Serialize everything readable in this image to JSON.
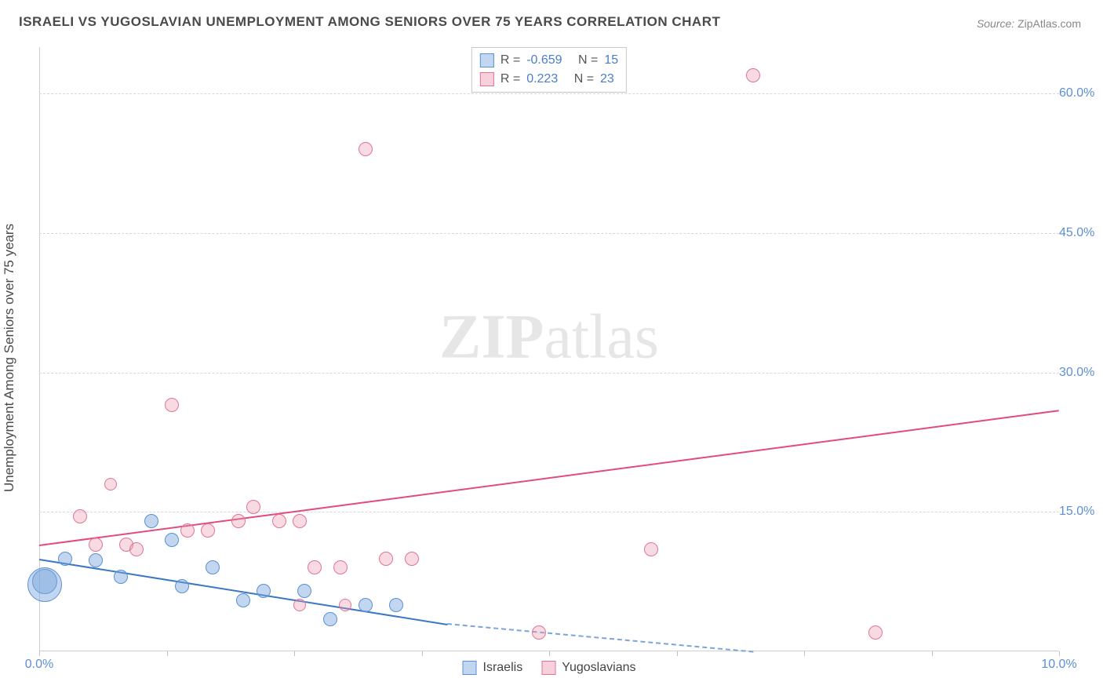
{
  "title": "ISRAELI VS YUGOSLAVIAN UNEMPLOYMENT AMONG SENIORS OVER 75 YEARS CORRELATION CHART",
  "source_label": "Source:",
  "source_value": "ZipAtlas.com",
  "y_axis_label": "Unemployment Among Seniors over 75 years",
  "watermark_bold": "ZIP",
  "watermark_rest": "atlas",
  "chart": {
    "type": "scatter-with-trend",
    "background_color": "#ffffff",
    "grid_color": "#d8d8d8",
    "axis_color": "#d0d0d0",
    "tick_label_color": "#5b8fd6",
    "xlim": [
      0,
      10
    ],
    "ylim": [
      0,
      65
    ],
    "x_ticks": [
      0,
      1.25,
      2.5,
      3.75,
      5,
      6.25,
      7.5,
      8.75,
      10
    ],
    "x_tick_labels": {
      "0": "0.0%",
      "10": "10.0%"
    },
    "y_gridlines": [
      15,
      30,
      45,
      60
    ],
    "y_tick_labels": {
      "15": "15.0%",
      "30": "30.0%",
      "45": "45.0%",
      "60": "60.0%"
    },
    "label_fontsize": 16,
    "title_fontsize": 17,
    "axis_fontsize": 17
  },
  "series": {
    "israelis": {
      "label": "Israelis",
      "color": "#5b8fd6",
      "fill": "rgba(120,165,220,0.45)",
      "R": "-0.659",
      "N": "15",
      "points": [
        {
          "x": 0.05,
          "y": 7.5,
          "r": 16
        },
        {
          "x": 0.05,
          "y": 7.2,
          "r": 22
        },
        {
          "x": 0.25,
          "y": 10.0,
          "r": 9
        },
        {
          "x": 0.55,
          "y": 9.8,
          "r": 9
        },
        {
          "x": 0.8,
          "y": 8.0,
          "r": 9
        },
        {
          "x": 1.1,
          "y": 14.0,
          "r": 9
        },
        {
          "x": 1.3,
          "y": 12.0,
          "r": 9
        },
        {
          "x": 1.4,
          "y": 7.0,
          "r": 9
        },
        {
          "x": 1.7,
          "y": 9.0,
          "r": 9
        },
        {
          "x": 2.0,
          "y": 5.5,
          "r": 9
        },
        {
          "x": 2.2,
          "y": 6.5,
          "r": 9
        },
        {
          "x": 2.6,
          "y": 6.5,
          "r": 9
        },
        {
          "x": 2.85,
          "y": 3.5,
          "r": 9
        },
        {
          "x": 3.2,
          "y": 5.0,
          "r": 9
        },
        {
          "x": 3.5,
          "y": 5.0,
          "r": 9
        }
      ],
      "trend": {
        "x1": 0,
        "y1": 10.0,
        "x2": 4.0,
        "y2": 3.0,
        "extend_to_x": 10,
        "extend_to_y": -3
      }
    },
    "yugoslavians": {
      "label": "Yugoslavians",
      "color": "#e27396",
      "fill": "rgba(235,150,175,0.35)",
      "R": "0.223",
      "N": "23",
      "points": [
        {
          "x": 0.4,
          "y": 14.5,
          "r": 9
        },
        {
          "x": 0.55,
          "y": 11.5,
          "r": 9
        },
        {
          "x": 0.7,
          "y": 18.0,
          "r": 8
        },
        {
          "x": 0.85,
          "y": 11.5,
          "r": 9
        },
        {
          "x": 0.95,
          "y": 11.0,
          "r": 9
        },
        {
          "x": 1.3,
          "y": 26.5,
          "r": 9
        },
        {
          "x": 1.45,
          "y": 13.0,
          "r": 9
        },
        {
          "x": 1.65,
          "y": 13.0,
          "r": 9
        },
        {
          "x": 1.95,
          "y": 14.0,
          "r": 9
        },
        {
          "x": 2.1,
          "y": 15.5,
          "r": 9
        },
        {
          "x": 2.35,
          "y": 14.0,
          "r": 9
        },
        {
          "x": 2.55,
          "y": 14.0,
          "r": 9
        },
        {
          "x": 2.55,
          "y": 5.0,
          "r": 8
        },
        {
          "x": 2.7,
          "y": 9.0,
          "r": 9
        },
        {
          "x": 2.95,
          "y": 9.0,
          "r": 9
        },
        {
          "x": 3.0,
          "y": 5.0,
          "r": 8
        },
        {
          "x": 3.2,
          "y": 54.0,
          "r": 9
        },
        {
          "x": 3.4,
          "y": 10.0,
          "r": 9
        },
        {
          "x": 3.65,
          "y": 10.0,
          "r": 9
        },
        {
          "x": 4.9,
          "y": 2.0,
          "r": 9
        },
        {
          "x": 6.0,
          "y": 11.0,
          "r": 9
        },
        {
          "x": 7.0,
          "y": 62.0,
          "r": 9
        },
        {
          "x": 8.2,
          "y": 2.0,
          "r": 9
        }
      ],
      "trend": {
        "x1": 0,
        "y1": 11.5,
        "x2": 10,
        "y2": 26.0
      }
    }
  },
  "legend_top": {
    "r_label": "R =",
    "n_label": "N ="
  },
  "legend_bottom": [
    {
      "key": "israelis"
    },
    {
      "key": "yugoslavians"
    }
  ]
}
